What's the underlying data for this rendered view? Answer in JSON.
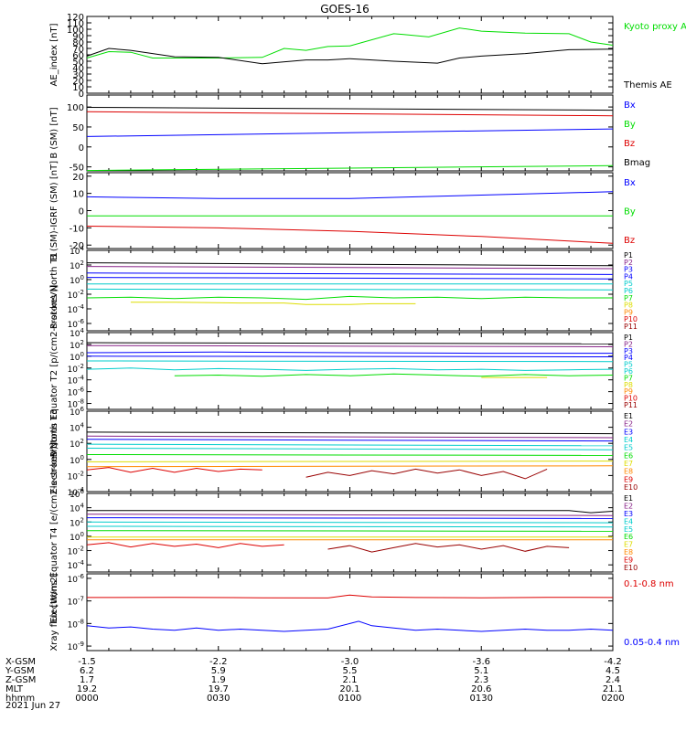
{
  "title": "GOES-16",
  "date_label": "2021 Jun 27",
  "colors": {
    "black": "#000000",
    "blue": "#0000ff",
    "green": "#00dd00",
    "red": "#dd0000",
    "cyan": "#00cccc",
    "yellow": "#dddd00",
    "purple": "#882288",
    "orange": "#ff8800",
    "darkred": "#990000"
  },
  "ephemeris": {
    "rows": [
      {
        "label": "X-GSM",
        "values": [
          "-1.5",
          "-2.2",
          "-3.0",
          "-3.6",
          "-4.2"
        ]
      },
      {
        "label": "Y-GSM",
        "values": [
          "6.2",
          "5.9",
          "5.5",
          "5.1",
          "4.5"
        ]
      },
      {
        "label": "Z-GSM",
        "values": [
          "1.7",
          "1.9",
          "2.1",
          "2.3",
          "2.4"
        ]
      },
      {
        "label": "MLT",
        "values": [
          "19.2",
          "19.7",
          "20.1",
          "20.6",
          "21.1"
        ]
      },
      {
        "label": "hhmm",
        "values": [
          "0000",
          "0030",
          "0100",
          "0130",
          "0200"
        ]
      }
    ]
  },
  "chart_data": [
    {
      "type": "line",
      "ylabel": "AE_index [nT]",
      "ylim": [
        0,
        120
      ],
      "yticks": [
        "0",
        "10",
        "20",
        "30",
        "40",
        "50",
        "60",
        "70",
        "80",
        "90",
        "100",
        "110",
        "120"
      ],
      "series": [
        {
          "name": "Kyoto proxy AE",
          "color": "green",
          "x": [
            0,
            5,
            10,
            15,
            20,
            30,
            40,
            45,
            50,
            55,
            60,
            70,
            72,
            78,
            85,
            90,
            100,
            110,
            115,
            120
          ],
          "y": [
            55,
            65,
            64,
            55,
            55,
            55,
            56,
            70,
            67,
            73,
            74,
            93,
            92,
            88,
            102,
            97,
            94,
            93,
            80,
            75
          ]
        },
        {
          "name": "Themis AE",
          "color": "black",
          "x": [
            0,
            5,
            10,
            20,
            30,
            40,
            50,
            55,
            60,
            70,
            80,
            85,
            90,
            100,
            110,
            120
          ],
          "y": [
            58,
            70,
            67,
            57,
            56,
            46,
            52,
            52,
            54,
            50,
            47,
            55,
            58,
            62,
            68,
            69
          ]
        }
      ]
    },
    {
      "type": "line",
      "ylabel": "B (SM) [nT]",
      "ylim": [
        -60,
        130
      ],
      "yticks": [
        "-50",
        "0",
        "50",
        "100"
      ],
      "series": [
        {
          "name": "Bx",
          "color": "blue",
          "x": [
            0,
            120
          ],
          "y": [
            26,
            45
          ]
        },
        {
          "name": "By",
          "color": "green",
          "x": [
            0,
            120
          ],
          "y": [
            -59,
            -47
          ]
        },
        {
          "name": "Bz",
          "color": "red",
          "x": [
            0,
            120
          ],
          "y": [
            88,
            78
          ]
        },
        {
          "name": "Bmag",
          "color": "black",
          "x": [
            0,
            120
          ],
          "y": [
            99,
            92
          ]
        }
      ]
    },
    {
      "type": "line",
      "ylabel": "B (SM)-IGRF (SM) [nT]",
      "ylim": [
        -22,
        22
      ],
      "yticks": [
        "-20",
        "-10",
        "0",
        "10",
        "20"
      ],
      "series": [
        {
          "name": "Bx",
          "color": "blue",
          "x": [
            0,
            30,
            60,
            90,
            120
          ],
          "y": [
            8,
            7,
            7,
            9,
            11
          ]
        },
        {
          "name": "By",
          "color": "green",
          "x": [
            0,
            120
          ],
          "y": [
            -3,
            -3
          ]
        },
        {
          "name": "Bz",
          "color": "red",
          "x": [
            0,
            30,
            60,
            90,
            120
          ],
          "y": [
            -9,
            -10,
            -12,
            -15,
            -19
          ]
        }
      ]
    },
    {
      "type": "line",
      "log": true,
      "ylabel": "Protons North T1",
      "ylim": [
        -7,
        4
      ],
      "yticks": [
        "10^-6",
        "10^-4",
        "10^-2",
        "10^0",
        "10^2",
        "10^4"
      ],
      "series": [
        {
          "name": "P1",
          "color": "black",
          "x": [
            0,
            120
          ],
          "y": [
            2.3,
            1.9
          ]
        },
        {
          "name": "P2",
          "color": "purple",
          "x": [
            0,
            120
          ],
          "y": [
            1.8,
            1.5
          ]
        },
        {
          "name": "P3",
          "color": "blue",
          "x": [
            0,
            120
          ],
          "y": [
            0.9,
            0.7
          ]
        },
        {
          "name": "P4",
          "color": "blue",
          "x": [
            0,
            120
          ],
          "y": [
            0.3,
            0.1
          ]
        },
        {
          "name": "P5",
          "color": "cyan",
          "x": [
            0,
            120
          ],
          "y": [
            -0.6,
            -0.6
          ]
        },
        {
          "name": "P6",
          "color": "cyan",
          "x": [
            0,
            120
          ],
          "y": [
            -1.3,
            -1.4
          ]
        },
        {
          "name": "P7",
          "color": "green",
          "x": [
            0,
            10,
            20,
            30,
            40,
            50,
            60,
            70,
            80,
            90,
            100,
            110,
            120
          ],
          "y": [
            -2.5,
            -2.4,
            -2.6,
            -2.4,
            -2.5,
            -2.7,
            -2.3,
            -2.5,
            -2.4,
            -2.6,
            -2.4,
            -2.5,
            -2.5
          ]
        },
        {
          "name": "P8",
          "color": "yellow",
          "x": [
            10,
            20,
            35,
            45,
            50,
            60,
            65,
            75
          ],
          "y": [
            -3.1,
            -3.1,
            -3.2,
            -3.2,
            -3.4,
            -3.4,
            -3.3,
            -3.3
          ]
        },
        {
          "name": "P9",
          "color": "orange",
          "x": [],
          "y": []
        },
        {
          "name": "P10",
          "color": "red",
          "x": [],
          "y": []
        },
        {
          "name": "P11",
          "color": "darkred",
          "x": [],
          "y": []
        }
      ]
    },
    {
      "type": "line",
      "log": true,
      "ylabel": "Protons Equator T2 [p/(cm2-s-sr-keV)]",
      "ylim": [
        -9,
        4
      ],
      "yticks": [
        "10^-8",
        "10^-6",
        "10^-4",
        "10^-2",
        "10^0",
        "10^2",
        "10^4"
      ],
      "series": [
        {
          "name": "P1",
          "color": "black",
          "x": [
            0,
            120
          ],
          "y": [
            2.3,
            2.1
          ]
        },
        {
          "name": "P2",
          "color": "purple",
          "x": [
            0,
            120
          ],
          "y": [
            1.8,
            1.6
          ]
        },
        {
          "name": "P3",
          "color": "blue",
          "x": [
            0,
            30,
            60,
            90,
            120
          ],
          "y": [
            0.6,
            0.7,
            0.6,
            0.5,
            0.5
          ]
        },
        {
          "name": "P4",
          "color": "blue",
          "x": [
            0,
            120
          ],
          "y": [
            0.0,
            -0.1
          ]
        },
        {
          "name": "P5",
          "color": "cyan",
          "x": [
            0,
            120
          ],
          "y": [
            -0.8,
            -0.9
          ]
        },
        {
          "name": "P6",
          "color": "cyan",
          "x": [
            0,
            10,
            20,
            30,
            40,
            50,
            60,
            70,
            80,
            90,
            100,
            110,
            120
          ],
          "y": [
            -2.2,
            -2.0,
            -2.3,
            -2.1,
            -2.2,
            -2.4,
            -2.2,
            -2.1,
            -2.3,
            -2.2,
            -2.4,
            -2.3,
            -2.2
          ]
        },
        {
          "name": "P7",
          "color": "green",
          "x": [
            20,
            30,
            40,
            50,
            60,
            70,
            80,
            90,
            100,
            110,
            120
          ],
          "y": [
            -3.3,
            -3.2,
            -3.4,
            -3.1,
            -3.3,
            -3.0,
            -3.2,
            -3.4,
            -3.1,
            -3.3,
            -3.2
          ]
        },
        {
          "name": "P8",
          "color": "yellow",
          "x": [
            90,
            105
          ],
          "y": [
            -3.6,
            -3.6
          ]
        },
        {
          "name": "P9",
          "color": "orange",
          "x": [],
          "y": []
        },
        {
          "name": "P10",
          "color": "red",
          "x": [],
          "y": []
        },
        {
          "name": "P11",
          "color": "darkred",
          "x": [],
          "y": []
        }
      ]
    },
    {
      "type": "line",
      "log": true,
      "ylabel": "Electrons North T3",
      "ylim": [
        -4,
        6
      ],
      "yticks": [
        "10^-4",
        "10^-2",
        "10^0",
        "10^2",
        "10^4",
        "10^6"
      ],
      "series": [
        {
          "name": "E1",
          "color": "black",
          "x": [
            0,
            120
          ],
          "y": [
            3.4,
            3.2
          ]
        },
        {
          "name": "E2",
          "color": "purple",
          "x": [
            0,
            120
          ],
          "y": [
            2.9,
            2.7
          ]
        },
        {
          "name": "E3",
          "color": "blue",
          "x": [
            0,
            120
          ],
          "y": [
            2.5,
            2.3
          ]
        },
        {
          "name": "E4",
          "color": "cyan",
          "x": [
            0,
            120
          ],
          "y": [
            1.9,
            1.7
          ]
        },
        {
          "name": "E5",
          "color": "cyan",
          "x": [
            0,
            120
          ],
          "y": [
            1.4,
            1.2
          ]
        },
        {
          "name": "E6",
          "color": "green",
          "x": [
            0,
            120
          ],
          "y": [
            0.6,
            0.5
          ]
        },
        {
          "name": "E7",
          "color": "yellow",
          "x": [
            0,
            120
          ],
          "y": [
            -0.3,
            -0.2
          ]
        },
        {
          "name": "E8",
          "color": "orange",
          "x": [
            0,
            120
          ],
          "y": [
            -0.9,
            -0.8
          ]
        },
        {
          "name": "E9",
          "color": "red",
          "x": [
            0,
            5,
            10,
            15,
            20,
            25,
            30,
            35,
            40
          ],
          "y": [
            -1.3,
            -1.0,
            -1.6,
            -1.1,
            -1.6,
            -1.1,
            -1.5,
            -1.2,
            -1.3
          ]
        },
        {
          "name": "E10",
          "color": "darkred",
          "x": [
            50,
            55,
            60,
            65,
            70,
            75,
            80,
            85,
            90,
            95,
            100,
            105
          ],
          "y": [
            -2.2,
            -1.6,
            -2.0,
            -1.4,
            -1.8,
            -1.2,
            -1.7,
            -1.3,
            -2.0,
            -1.5,
            -2.4,
            -1.2
          ]
        }
      ]
    },
    {
      "type": "line",
      "log": true,
      "ylabel": "Electrons Equator T4 [e/(cm2-s-sr-keV)]",
      "ylim": [
        -5,
        6
      ],
      "yticks": [
        "10^-4",
        "10^-2",
        "10^0",
        "10^2",
        "10^4",
        "10^6"
      ],
      "series": [
        {
          "name": "E1",
          "color": "black",
          "x": [
            0,
            110,
            115,
            120
          ],
          "y": [
            3.6,
            3.6,
            3.3,
            3.5
          ]
        },
        {
          "name": "E2",
          "color": "purple",
          "x": [
            0,
            120
          ],
          "y": [
            3.1,
            2.9
          ]
        },
        {
          "name": "E3",
          "color": "blue",
          "x": [
            0,
            120
          ],
          "y": [
            2.6,
            2.5
          ]
        },
        {
          "name": "E4",
          "color": "cyan",
          "x": [
            0,
            120
          ],
          "y": [
            2.0,
            1.9
          ]
        },
        {
          "name": "E5",
          "color": "cyan",
          "x": [
            0,
            120
          ],
          "y": [
            1.4,
            1.3
          ]
        },
        {
          "name": "E6",
          "color": "green",
          "x": [
            0,
            120
          ],
          "y": [
            0.8,
            0.7
          ]
        },
        {
          "name": "E7",
          "color": "yellow",
          "x": [
            0,
            120
          ],
          "y": [
            -0.1,
            -0.1
          ]
        },
        {
          "name": "E8",
          "color": "orange",
          "x": [
            0,
            120
          ],
          "y": [
            -0.5,
            -0.5
          ]
        },
        {
          "name": "E9",
          "color": "red",
          "x": [
            0,
            5,
            10,
            15,
            20,
            25,
            30,
            35,
            40,
            45
          ],
          "y": [
            -1.2,
            -0.9,
            -1.5,
            -1.0,
            -1.4,
            -1.1,
            -1.6,
            -1.0,
            -1.4,
            -1.2
          ]
        },
        {
          "name": "E10",
          "color": "darkred",
          "x": [
            55,
            60,
            65,
            70,
            75,
            80,
            85,
            90,
            95,
            100,
            105,
            110
          ],
          "y": [
            -1.8,
            -1.3,
            -2.2,
            -1.6,
            -1.0,
            -1.5,
            -1.2,
            -1.8,
            -1.3,
            -2.1,
            -1.4,
            -1.6
          ]
        }
      ]
    },
    {
      "type": "line",
      "log": true,
      "ylabel": "Xray flux [W/m2]",
      "ylim": [
        -9.2,
        -5.8
      ],
      "yticks": [
        "10^-9",
        "10^-8",
        "10^-7",
        "10^-6"
      ],
      "series": [
        {
          "name": "0.1-0.8 nm",
          "color": "red",
          "x": [
            0,
            20,
            40,
            55,
            60,
            65,
            75,
            90,
            105,
            120
          ],
          "y": [
            -6.85,
            -6.84,
            -6.86,
            -6.87,
            -6.74,
            -6.82,
            -6.85,
            -6.86,
            -6.84,
            -6.85
          ]
        },
        {
          "name": "0.05-0.4 nm",
          "color": "blue",
          "x": [
            0,
            5,
            10,
            15,
            20,
            25,
            30,
            35,
            40,
            45,
            50,
            55,
            60,
            62,
            65,
            70,
            75,
            80,
            85,
            90,
            95,
            100,
            105,
            110,
            115,
            120
          ],
          "y": [
            -8.1,
            -8.2,
            -8.15,
            -8.25,
            -8.3,
            -8.2,
            -8.3,
            -8.25,
            -8.3,
            -8.35,
            -8.3,
            -8.25,
            -8.0,
            -7.9,
            -8.1,
            -8.2,
            -8.3,
            -8.25,
            -8.3,
            -8.35,
            -8.3,
            -8.25,
            -8.3,
            -8.3,
            -8.25,
            -8.3
          ]
        }
      ]
    }
  ]
}
